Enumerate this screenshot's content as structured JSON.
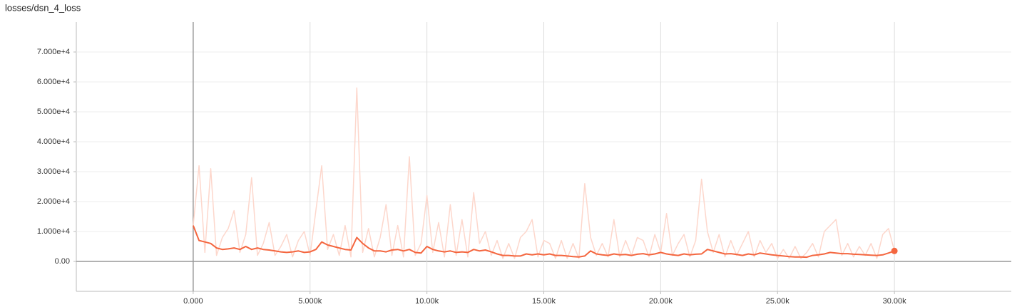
{
  "chart_data": {
    "type": "line",
    "title": "losses/dsn_4_loss",
    "x": [
      0,
      250,
      500,
      750,
      1000,
      1250,
      1500,
      1750,
      2000,
      2250,
      2500,
      2750,
      3000,
      3250,
      3500,
      3750,
      4000,
      4250,
      4500,
      4750,
      5000,
      5250,
      5500,
      5750,
      6000,
      6250,
      6500,
      6750,
      7000,
      7250,
      7500,
      7750,
      8000,
      8250,
      8500,
      8750,
      9000,
      9250,
      9500,
      9750,
      10000,
      10250,
      10500,
      10750,
      11000,
      11250,
      11500,
      11750,
      12000,
      12250,
      12500,
      12750,
      13000,
      13250,
      13500,
      13750,
      14000,
      14250,
      14500,
      14750,
      15000,
      15250,
      15500,
      15750,
      16000,
      16250,
      16500,
      16750,
      17000,
      17250,
      17500,
      17750,
      18000,
      18250,
      18500,
      18750,
      19000,
      19250,
      19500,
      19750,
      20000,
      20250,
      20500,
      20750,
      21000,
      21250,
      21500,
      21750,
      22000,
      22250,
      22500,
      22750,
      23000,
      23250,
      23500,
      23750,
      24000,
      24250,
      24500,
      24750,
      25000,
      25250,
      25500,
      25750,
      26000,
      26250,
      26500,
      26750,
      27000,
      27250,
      27500,
      27750,
      28000,
      28250,
      28500,
      28750,
      29000,
      29250,
      29500,
      29750,
      30000
    ],
    "series": [
      {
        "color": "#fdd7cc",
        "values": [
          12000,
          32000,
          3000,
          31000,
          2000,
          8000,
          11000,
          17000,
          3000,
          9000,
          28000,
          2000,
          6000,
          13000,
          2000,
          5000,
          9000,
          1500,
          7000,
          10000,
          2000,
          17000,
          32000,
          4000,
          9000,
          2000,
          12000,
          1500,
          58000,
          3000,
          11000,
          1500,
          8000,
          19000,
          2000,
          12000,
          1500,
          35000,
          2000,
          6000,
          22000,
          3000,
          13000,
          1500,
          19000,
          2000,
          14000,
          1500,
          23000,
          6000,
          10000,
          2000,
          7000,
          1000,
          6000,
          1000,
          8000,
          10000,
          14000,
          1500,
          7000,
          6000,
          1000,
          7000,
          1000,
          6000,
          1000,
          26000,
          8000,
          2000,
          6000,
          1500,
          14000,
          1500,
          7000,
          2000,
          8000,
          7000,
          1500,
          9000,
          3000,
          16000,
          2000,
          6000,
          9000,
          1500,
          7000,
          27500,
          10000,
          3000,
          9000,
          1500,
          7000,
          2000,
          6000,
          10000,
          1500,
          7000,
          3000,
          6000,
          1000,
          4000,
          1000,
          5000,
          1000,
          3000,
          6000,
          1500,
          10000,
          12000,
          14000,
          2000,
          6000,
          1500,
          5000,
          2000,
          6000,
          1000,
          9000,
          11000,
          3500
        ]
      },
      {
        "color": "#f4663f",
        "values": [
          12000,
          7000,
          6500,
          6000,
          4500,
          4000,
          4200,
          4500,
          4000,
          5000,
          4000,
          4500,
          4000,
          3800,
          3500,
          3200,
          3000,
          3200,
          3500,
          3000,
          3200,
          4000,
          6500,
          5500,
          5000,
          4500,
          4000,
          3800,
          8000,
          6000,
          4500,
          3500,
          3500,
          3200,
          3800,
          4000,
          3500,
          4000,
          3000,
          2800,
          5000,
          4000,
          3500,
          3200,
          3500,
          3000,
          3200,
          3000,
          4000,
          3500,
          3800,
          3200,
          2500,
          2000,
          2000,
          1800,
          1800,
          2500,
          2200,
          2500,
          2200,
          2500,
          2000,
          2000,
          1800,
          1600,
          1500,
          1800,
          3500,
          2500,
          2200,
          2000,
          2500,
          2200,
          2300,
          2000,
          2400,
          2600,
          2200,
          2500,
          3000,
          2500,
          2200,
          2000,
          2500,
          2200,
          2400,
          2500,
          4000,
          3500,
          3000,
          2500,
          2600,
          2300,
          2000,
          2500,
          2200,
          2800,
          2500,
          2200,
          2000,
          1800,
          1600,
          1500,
          1500,
          1400,
          2000,
          2200,
          2500,
          3000,
          2800,
          2600,
          2600,
          2400,
          2300,
          2200,
          2100,
          2000,
          2200,
          2800,
          3500
        ]
      }
    ],
    "xlim": [
      -5000,
      35000
    ],
    "ylim": [
      -10000,
      80000
    ],
    "xticks": [
      {
        "value": 0,
        "label": "0.000"
      },
      {
        "value": 5000,
        "label": "5.000k"
      },
      {
        "value": 10000,
        "label": "10.00k"
      },
      {
        "value": 15000,
        "label": "15.00k"
      },
      {
        "value": 20000,
        "label": "20.00k"
      },
      {
        "value": 25000,
        "label": "25.00k"
      },
      {
        "value": 30000,
        "label": "30.00k"
      }
    ],
    "yticks": [
      {
        "value": 0,
        "label": "0.00"
      },
      {
        "value": 10000,
        "label": "1.000e+4"
      },
      {
        "value": 20000,
        "label": "2.000e+4"
      },
      {
        "value": 30000,
        "label": "3.000e+4"
      },
      {
        "value": 40000,
        "label": "4.000e+4"
      },
      {
        "value": 50000,
        "label": "5.000e+4"
      },
      {
        "value": 60000,
        "label": "6.000e+4"
      },
      {
        "value": 70000,
        "label": "7.000e+4"
      }
    ],
    "grid": true
  }
}
